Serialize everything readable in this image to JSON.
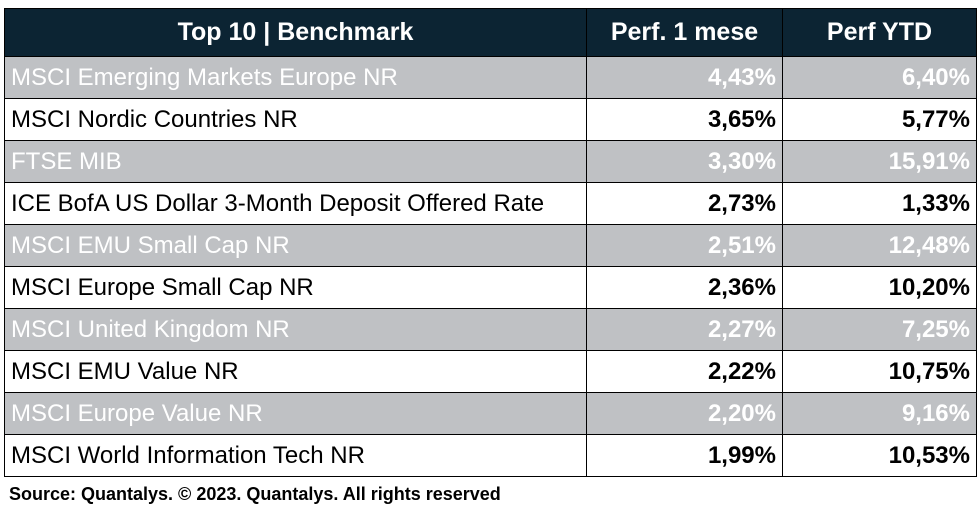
{
  "chart_data": {
    "type": "table",
    "title": "Top 10 | Benchmark",
    "columns": [
      "Top 10 | Benchmark",
      "Perf. 1 mese",
      "Perf YTD"
    ],
    "rows": [
      {
        "name": "MSCI Emerging Markets Europe NR",
        "perf_1m": "4,43%",
        "perf_ytd": "6,40%"
      },
      {
        "name": "MSCI Nordic Countries NR",
        "perf_1m": "3,65%",
        "perf_ytd": "5,77%"
      },
      {
        "name": "FTSE MIB",
        "perf_1m": "3,30%",
        "perf_ytd": "15,91%"
      },
      {
        "name": "ICE BofA US Dollar 3-Month Deposit Offered Rate",
        "perf_1m": "2,73%",
        "perf_ytd": "1,33%"
      },
      {
        "name": "MSCI EMU Small Cap NR",
        "perf_1m": "2,51%",
        "perf_ytd": "12,48%"
      },
      {
        "name": "MSCI Europe Small Cap NR",
        "perf_1m": "2,36%",
        "perf_ytd": "10,20%"
      },
      {
        "name": "MSCI United Kingdom NR",
        "perf_1m": "2,27%",
        "perf_ytd": "7,25%"
      },
      {
        "name": "MSCI EMU Value NR",
        "perf_1m": "2,22%",
        "perf_ytd": "10,75%"
      },
      {
        "name": "MSCI Europe Value NR",
        "perf_1m": "2,20%",
        "perf_ytd": "9,16%"
      },
      {
        "name": "MSCI World Information Tech NR",
        "perf_1m": "1,99%",
        "perf_ytd": "10,53%"
      }
    ],
    "source": "Source: Quantalys. © 2023. Quantalys. All rights reserved"
  },
  "colors": {
    "header_bg": "#0c2433",
    "header_text": "#ffffff",
    "shaded_row_bg": "#bfc1c4",
    "shaded_row_text": "#ffffff",
    "plain_row_bg": "#ffffff",
    "plain_row_text": "#000000"
  }
}
